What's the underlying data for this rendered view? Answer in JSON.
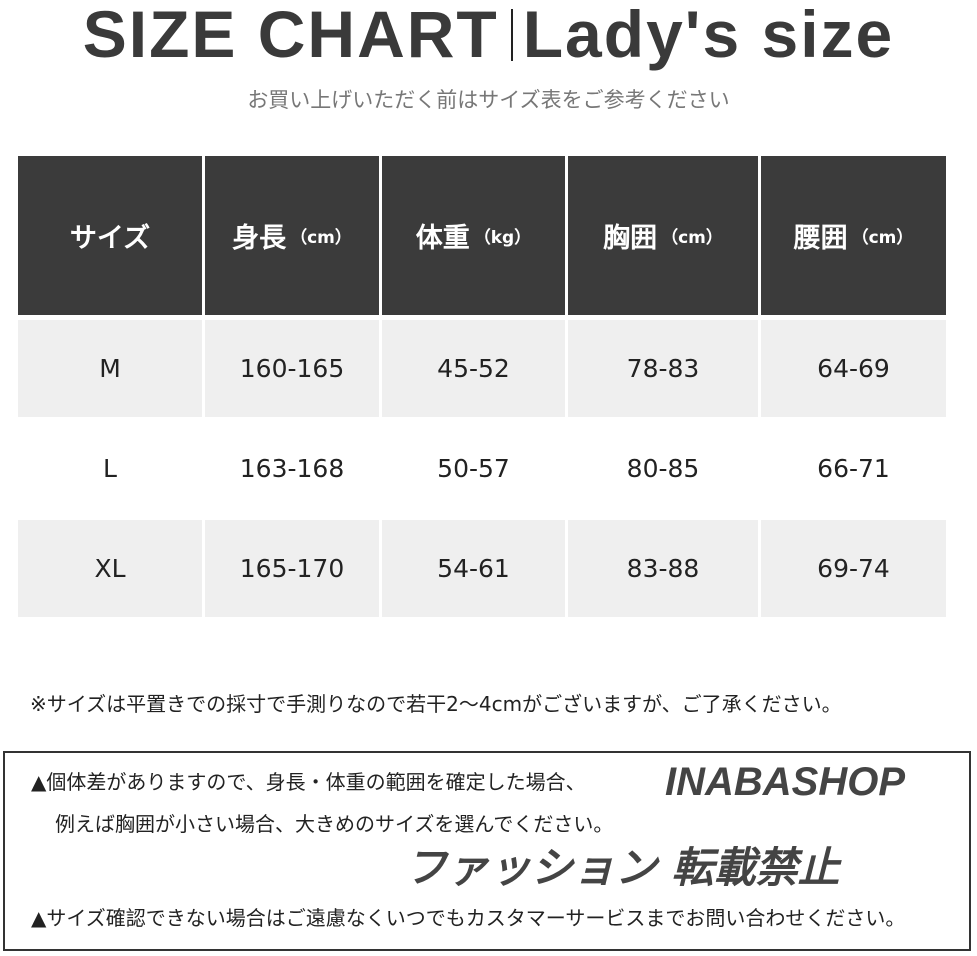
{
  "header": {
    "title_left": "SIZE CHART",
    "title_right": "Lady's size",
    "subtitle": "お買い上げいただく前はサイズ表をご参考ください"
  },
  "table": {
    "columns": [
      {
        "label": "サイズ",
        "unit": ""
      },
      {
        "label": "身長",
        "unit": "（cm）"
      },
      {
        "label": "体重",
        "unit": "（kg）"
      },
      {
        "label": "胸囲",
        "unit": "（cm）"
      },
      {
        "label": "腰囲",
        "unit": "（cm）"
      }
    ],
    "rows": [
      [
        "M",
        "160-165",
        "45-52",
        "78-83",
        "64-69"
      ],
      [
        "L",
        "163-168",
        "50-57",
        "80-85",
        "66-71"
      ],
      [
        "XL",
        "165-170",
        "54-61",
        "83-88",
        "69-74"
      ]
    ],
    "colors": {
      "header_bg": "#3b3b3b",
      "stripe_bg": "#efefef"
    }
  },
  "note": "※サイズは平置きでの採寸で手測りなので若干2～4cmがございますが、ご了承ください。",
  "notice_box": {
    "line1": "▲個体差がありますので、身長・体重の範囲を確定した場合、",
    "line2": "例えば胸囲が小さい場合、大きめのサイズを選んでください。",
    "line3": "▲サイズ確認できない場合はご遠慮なくいつでもカスタマーサービスまでお問い合わせください。"
  },
  "watermark": {
    "brand": "INABASHOP",
    "text": "ファッション 転載禁止"
  }
}
